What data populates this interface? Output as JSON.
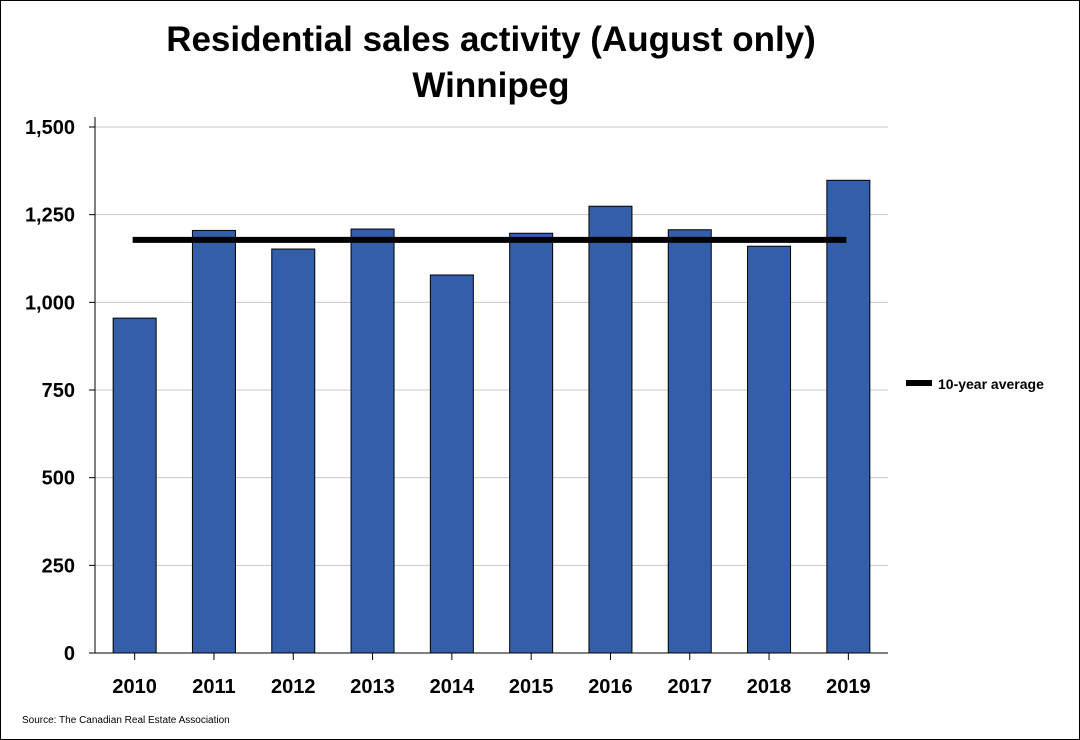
{
  "chart_data": {
    "type": "bar",
    "title": "Residential sales activity (August only)",
    "subtitle": "Winnipeg",
    "categories": [
      "2010",
      "2011",
      "2012",
      "2013",
      "2014",
      "2015",
      "2016",
      "2017",
      "2018",
      "2019"
    ],
    "series": [
      {
        "values": [
          955,
          1205,
          1152,
          1209,
          1078,
          1197,
          1274,
          1207,
          1160,
          1348
        ],
        "color": "#335EAA"
      }
    ],
    "reference_lines": [
      {
        "name": "10-year average",
        "value": 1178,
        "color": "#000000"
      }
    ],
    "ylim": [
      0,
      1500
    ],
    "yticks": [
      0,
      250,
      500,
      750,
      1000,
      1250,
      1500
    ],
    "ytick_labels": [
      "0",
      "250",
      "500",
      "750",
      "1,000",
      "1,250",
      "1,500"
    ],
    "xlabel": "",
    "ylabel": "",
    "grid": true,
    "legend_position": "right",
    "source": "Source: The Canadian Real Estate Association"
  }
}
